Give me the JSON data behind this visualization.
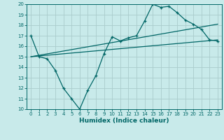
{
  "xlabel": "Humidex (Indice chaleur)",
  "bg_color": "#c8eaea",
  "grid_color": "#aacccc",
  "line_color": "#006666",
  "xlim": [
    -0.5,
    23.5
  ],
  "ylim": [
    10,
    20
  ],
  "xticks": [
    0,
    1,
    2,
    3,
    4,
    5,
    6,
    7,
    8,
    9,
    10,
    11,
    12,
    13,
    14,
    15,
    16,
    17,
    18,
    19,
    20,
    21,
    22,
    23
  ],
  "yticks": [
    10,
    11,
    12,
    13,
    14,
    15,
    16,
    17,
    18,
    19,
    20
  ],
  "line1_x": [
    0,
    1,
    2,
    3,
    4,
    5,
    6,
    7,
    8,
    9,
    10,
    11,
    12,
    13,
    14,
    15,
    16,
    17,
    18,
    19,
    20,
    21,
    22,
    23
  ],
  "line1_y": [
    17,
    15,
    14.8,
    13.7,
    12.0,
    11.0,
    10.0,
    11.8,
    13.2,
    15.3,
    16.9,
    16.5,
    16.8,
    17.0,
    18.4,
    20.0,
    19.7,
    19.8,
    19.2,
    18.5,
    18.1,
    17.6,
    16.6,
    16.5
  ],
  "line2_x": [
    0,
    23
  ],
  "line2_y": [
    15.0,
    18.1
  ],
  "line3_x": [
    0,
    23
  ],
  "line3_y": [
    15.0,
    16.6
  ]
}
